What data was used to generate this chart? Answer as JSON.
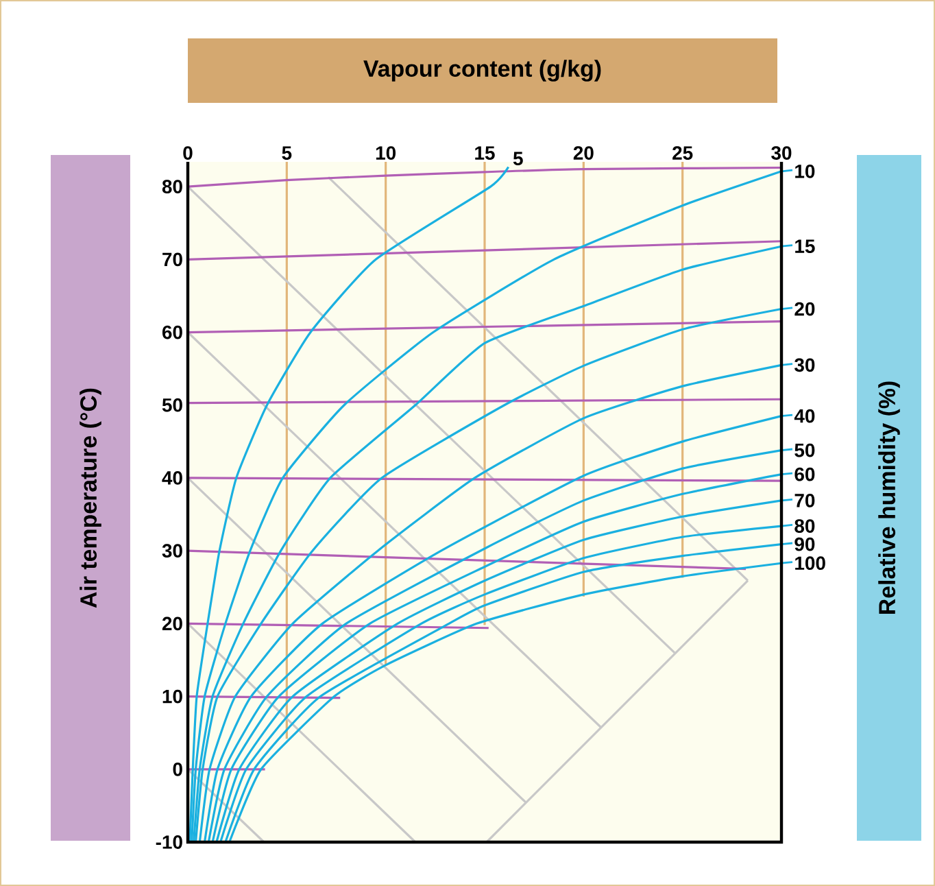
{
  "chart_data": {
    "type": "line",
    "xlabel": "Vapour content (g/kg)",
    "ylabel": "Air temperature (°C)",
    "y2label": "Relative humidity (%)",
    "xlim": [
      0,
      30
    ],
    "ylim": [
      -10,
      83.4
    ],
    "legend": "right",
    "xticks": [
      0,
      5,
      10,
      15,
      20,
      25,
      30
    ],
    "yticks": [
      -10,
      0,
      10,
      20,
      30,
      40,
      50,
      60,
      70,
      80
    ],
    "series": [
      {
        "color": "#e2b67a",
        "x": [
          5,
          5
        ],
        "values": [
          83.4,
          4.2
        ]
      },
      {
        "color": "#e2b67a",
        "x": [
          10,
          10
        ],
        "values": [
          83.4,
          14.3
        ]
      },
      {
        "color": "#e2b67a",
        "x": [
          15,
          15
        ],
        "values": [
          83.4,
          19.8
        ]
      },
      {
        "color": "#e2b67a",
        "x": [
          20,
          20
        ],
        "values": [
          83.4,
          23.7
        ]
      },
      {
        "color": "#e2b67a",
        "x": [
          25,
          25
        ],
        "values": [
          83.4,
          26.3
        ]
      },
      {
        "color": "#c8c8c8",
        "x": [
          0,
          24.6
        ],
        "values": [
          80,
          16
        ]
      },
      {
        "color": "#c8c8c8",
        "x": [
          7.1,
          28.3
        ],
        "values": [
          81.3,
          25.9
        ]
      },
      {
        "color": "#c8c8c8",
        "x": [
          0,
          20.9
        ],
        "values": [
          60,
          5.7
        ]
      },
      {
        "color": "#c8c8c8",
        "x": [
          0,
          17.1
        ],
        "values": [
          40,
          -4.6
        ]
      },
      {
        "color": "#c8c8c8",
        "x": [
          0,
          11.5
        ],
        "values": [
          20,
          -10
        ]
      },
      {
        "color": "#c8c8c8",
        "x": [
          0,
          3.85
        ],
        "values": [
          0,
          -10
        ]
      },
      {
        "color": "#c8c8c8",
        "x": [
          15.1,
          28.3
        ],
        "values": [
          -10,
          25.9
        ]
      },
      {
        "color": "#b15fb5",
        "x": [
          0,
          5,
          10,
          15,
          20,
          30
        ],
        "values": [
          80,
          80.9,
          81.5,
          82.0,
          82.4,
          82.6
        ]
      },
      {
        "color": "#b15fb5",
        "x": [
          0,
          30
        ],
        "values": [
          70,
          72.5
        ]
      },
      {
        "color": "#b15fb5",
        "x": [
          0,
          30
        ],
        "values": [
          60,
          61.5
        ]
      },
      {
        "color": "#b15fb5",
        "x": [
          0,
          30
        ],
        "values": [
          50.3,
          50.8
        ]
      },
      {
        "color": "#b15fb5",
        "x": [
          0,
          30
        ],
        "values": [
          40,
          39.6
        ]
      },
      {
        "color": "#b15fb5",
        "x": [
          0,
          28.2
        ],
        "values": [
          30,
          27.5
        ]
      },
      {
        "color": "#b15fb5",
        "x": [
          0,
          15.2
        ],
        "values": [
          20,
          19.4
        ]
      },
      {
        "color": "#b15fb5",
        "x": [
          0,
          7.7
        ],
        "values": [
          10,
          9.8
        ]
      },
      {
        "color": "#b15fb5",
        "x": [
          0,
          3.9
        ],
        "values": [
          0,
          0
        ]
      },
      {
        "name": "5",
        "color": "#1ab0e0",
        "x": [
          0.1,
          0.25,
          0.45,
          1.0,
          1.6,
          2.45,
          4.0,
          6.2,
          9.5,
          15.3,
          16.2
        ],
        "values": [
          -10,
          0,
          10,
          20,
          30,
          40,
          50,
          60,
          70,
          80,
          82.7
        ]
      },
      {
        "name": "10",
        "color": "#1ab0e0",
        "x": [
          0.2,
          0.4,
          0.85,
          1.9,
          3.15,
          4.8,
          7.9,
          12.4,
          18.5,
          25,
          30
        ],
        "values": [
          -10,
          0,
          10,
          20,
          30,
          40,
          50,
          60,
          70,
          77.4,
          82.1
        ]
      },
      {
        "name": "15",
        "color": "#1ab0e0",
        "x": [
          0.3,
          0.6,
          1.25,
          2.8,
          4.7,
          7.2,
          11.5,
          15,
          20,
          25,
          30
        ],
        "values": [
          -10,
          0,
          10,
          20,
          30,
          40,
          50,
          58.5,
          63.6,
          68.6,
          71.8
        ]
      },
      {
        "name": "20",
        "color": "#1ab0e0",
        "x": [
          0.4,
          0.75,
          1.5,
          3.7,
          6.3,
          9.8,
          16,
          20,
          25,
          30
        ],
        "values": [
          -10,
          0,
          10,
          20,
          30,
          40,
          50,
          55.4,
          60.4,
          63.2
        ]
      },
      {
        "name": "30",
        "color": "#1ab0e0",
        "x": [
          0.6,
          1.1,
          2.4,
          5.3,
          9.6,
          14.5,
          20,
          25,
          30
        ],
        "values": [
          -10,
          0,
          10,
          20,
          30,
          40,
          48.2,
          52.6,
          55.5
        ]
      },
      {
        "name": "40",
        "color": "#1ab0e0",
        "x": [
          0.85,
          1.5,
          3.2,
          6.8,
          12.8,
          20,
          25,
          30
        ],
        "values": [
          -10,
          0,
          10,
          20,
          30,
          40.3,
          45.0,
          48.5
        ]
      },
      {
        "name": "50",
        "color": "#1ab0e0",
        "x": [
          1.05,
          1.85,
          4,
          8.0,
          15,
          20,
          25,
          30
        ],
        "values": [
          -10,
          0,
          10,
          20,
          30.3,
          36.9,
          41.3,
          43.8
        ]
      },
      {
        "name": "60",
        "color": "#1ab0e0",
        "x": [
          1.25,
          2.2,
          4.6,
          9.2,
          15,
          20,
          25,
          30
        ],
        "values": [
          -10,
          0,
          10,
          20,
          27.8,
          34.0,
          37.8,
          40.5
        ]
      },
      {
        "name": "70",
        "color": "#1ab0e0",
        "x": [
          1.45,
          2.6,
          5.3,
          10.6,
          15,
          20,
          25,
          30
        ],
        "values": [
          -10,
          0,
          10,
          20,
          25.9,
          31.5,
          34.7,
          36.9
        ]
      },
      {
        "name": "80",
        "color": "#1ab0e0",
        "x": [
          1.65,
          2.95,
          6,
          11.8,
          15,
          20,
          25,
          30
        ],
        "values": [
          -10,
          0,
          10,
          20,
          24.0,
          29.0,
          31.9,
          33.4
        ]
      },
      {
        "name": "90",
        "color": "#1ab0e0",
        "x": [
          1.9,
          3.35,
          6.7,
          13.2,
          15,
          20,
          25,
          30
        ],
        "values": [
          -10,
          0,
          10,
          20,
          22.5,
          27.1,
          29.3,
          30.9
        ]
      },
      {
        "name": "100",
        "color": "#1ab0e0",
        "x": [
          2.1,
          3.7,
          7.4,
          10,
          14.6,
          20,
          25,
          30
        ],
        "values": [
          -10,
          0,
          10,
          14.3,
          20,
          24.0,
          26.5,
          28.3
        ]
      }
    ]
  }
}
